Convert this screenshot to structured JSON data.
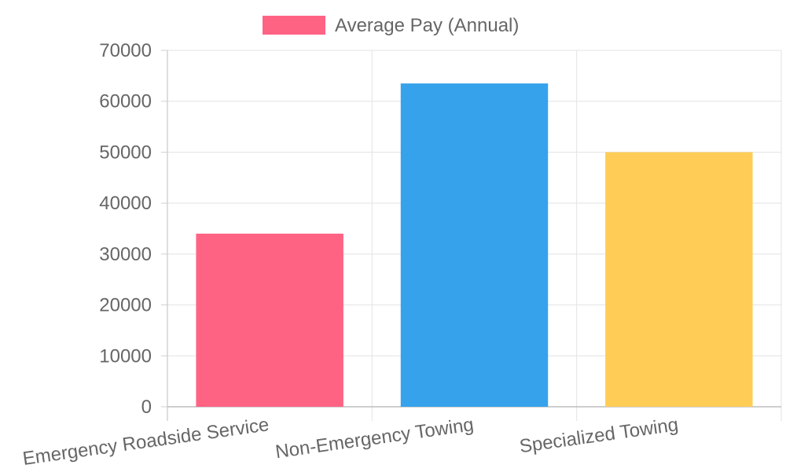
{
  "chart_data": {
    "type": "bar",
    "categories": [
      "Emergency Roadside Service",
      "Non-Emergency Towing",
      "Specialized Towing"
    ],
    "series": [
      {
        "name": "Average Pay (Annual)",
        "values": [
          34000,
          63500,
          50000
        ],
        "colors": [
          "#ff6384",
          "#36a2eb",
          "#ffcd56"
        ]
      }
    ],
    "y_ticks": [
      "0",
      "10000",
      "20000",
      "30000",
      "40000",
      "50000",
      "60000",
      "70000"
    ],
    "ylim": [
      0,
      70000
    ],
    "grid": true,
    "legend_position": "top"
  }
}
